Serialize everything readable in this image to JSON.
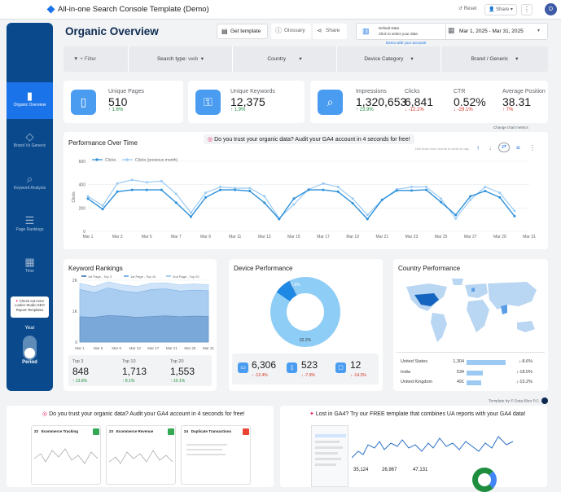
{
  "app": {
    "title": "All-in-one Search Console Template (Demo)",
    "reset_label": "Reset",
    "share_label": "Share",
    "more_icon": "more-vert-icon",
    "avatar_initial": "D"
  },
  "sidebar": {
    "items": [
      {
        "label": "Organic Overview",
        "icon": "bar-chart-icon"
      },
      {
        "label": "Brand Vs Generic",
        "icon": "tag-icon"
      },
      {
        "label": "Keyword Analysis",
        "icon": "search-list-icon"
      },
      {
        "label": "Page Rankings",
        "icon": "ranked-list-icon"
      },
      {
        "label": "Time",
        "icon": "calendar-icon"
      }
    ],
    "promo": "Check out more Looker Studio SEO Report Templates",
    "toggle_top": "Year",
    "toggle_bottom": "Period"
  },
  "header": {
    "title": "Organic Overview",
    "get_template": "Get template",
    "glossary": "Glossary",
    "share": "Share",
    "default_data": "Default Data",
    "default_data_hint": "Click to select your data",
    "demo_note": "Demo with your account!",
    "date_range": "Mar 1, 2025 - Mar 31, 2025"
  },
  "filters": {
    "add_filter": "+ Filter",
    "search_type_label": "Search type:",
    "search_type_value": "web",
    "country": "Country",
    "device": "Device Category",
    "brand": "Brand / Generic"
  },
  "kpis": {
    "unique_pages": {
      "label": "Unique Pages",
      "value": "510",
      "delta": "1.6%"
    },
    "unique_keywords": {
      "label": "Unique Keywords",
      "value": "12,375",
      "delta": "1.9%"
    },
    "impressions": {
      "label": "Impressions",
      "value": "1,320,653",
      "delta": "23.9%"
    },
    "clicks": {
      "label": "Clicks",
      "value": "6,841",
      "delta": "-12.1%"
    },
    "ctr": {
      "label": "CTR",
      "value": "0.52%",
      "delta": "-29.1%"
    },
    "position": {
      "label": "Average Position",
      "value": "38.31",
      "delta": "7%"
    }
  },
  "performance": {
    "title": "Performance Over Time",
    "banner": "Do you trust your organic data? Audit your GA4 account in 4 seconds for free!",
    "change_metrics": "Change chart metrics",
    "drill_hint": "Drill down from month to week to day",
    "legend": [
      "Clicks",
      "Clicks (previous month)"
    ],
    "ylabel": "Clicks"
  },
  "chart_data": [
    {
      "type": "line",
      "title": "Performance Over Time",
      "ylabel": "Clicks",
      "ylim": [
        0,
        600
      ],
      "yticks": [
        0,
        200,
        400,
        600
      ],
      "x": [
        "Mar 1",
        "Mar 2",
        "Mar 3",
        "Mar 4",
        "Mar 5",
        "Mar 6",
        "Mar 7",
        "Mar 8",
        "Mar 9",
        "Mar 10",
        "Mar 11",
        "Mar 12",
        "Mar 13",
        "Mar 14",
        "Mar 15",
        "Mar 16",
        "Mar 17",
        "Mar 18",
        "Mar 19",
        "Mar 20",
        "Mar 21",
        "Mar 22",
        "Mar 23",
        "Mar 24",
        "Mar 25",
        "Mar 26",
        "Mar 27",
        "Mar 28",
        "Mar 29",
        "Mar 30",
        "Mar 31"
      ],
      "x_tick_labels": [
        "Mar 1",
        "Mar 3",
        "Mar 5",
        "Mar 7",
        "Mar 9",
        "Mar 11",
        "Mar 13",
        "Mar 15",
        "Mar 17",
        "Mar 19",
        "Mar 21",
        "Mar 23",
        "Mar 25",
        "Mar 27",
        "Mar 29",
        "Mar 31"
      ],
      "series": [
        {
          "name": "Clicks",
          "values": [
            280,
            190,
            340,
            355,
            355,
            355,
            245,
            125,
            290,
            355,
            355,
            345,
            245,
            105,
            280,
            355,
            355,
            340,
            240,
            105,
            270,
            350,
            350,
            355,
            250,
            140,
            300,
            345,
            290,
            130,
            null
          ]
        },
        {
          "name": "Clicks (previous month)",
          "values": [
            300,
            220,
            410,
            440,
            420,
            430,
            320,
            160,
            330,
            380,
            370,
            370,
            300,
            110,
            230,
            360,
            410,
            380,
            280,
            140,
            270,
            360,
            380,
            380,
            280,
            110,
            270,
            380,
            330,
            175,
            null
          ]
        }
      ]
    },
    {
      "type": "area",
      "title": "Keyword Rankings",
      "ylim": [
        0,
        2000
      ],
      "yticks": [
        "0",
        "1K",
        "2K"
      ],
      "x_tick_labels": [
        "Mar 1",
        "Mar 5",
        "Mar 9",
        "Mar 13",
        "Mar 17",
        "Mar 21",
        "Mar 25",
        "Mar 31"
      ],
      "series": [
        {
          "name": "1st Page - Top 3",
          "values": [
            820,
            800,
            860,
            840,
            800,
            830,
            850,
            820,
            840,
            830
          ]
        },
        {
          "name": "1st Page - Top 10",
          "values": [
            1700,
            1600,
            1750,
            1650,
            1600,
            1700,
            1720,
            1650,
            1680,
            1660
          ]
        },
        {
          "name": "2nd Page - Top 20",
          "values": [
            1900,
            1800,
            1950,
            1850,
            1800,
            1900,
            1920,
            1850,
            1880,
            1860
          ]
        }
      ]
    },
    {
      "type": "pie",
      "title": "Device Performance",
      "slices": [
        {
          "name": "Desktop",
          "value": 92.2,
          "label": "92.2%"
        },
        {
          "name": "Mobile",
          "value": 7.6,
          "label": "7.6%"
        },
        {
          "name": "Tablet",
          "value": 0.2
        }
      ]
    },
    {
      "type": "bar",
      "title": "Country Performance",
      "categories": [
        "United States",
        "India",
        "United Kingdom"
      ],
      "values": [
        1304,
        534,
        491
      ],
      "deltas": [
        "-8.6%",
        "-18.0%",
        "-15.2%"
      ]
    }
  ],
  "keyword_rankings": {
    "title": "Keyword Rankings",
    "legend": [
      "1st Page - Top 3",
      "1st Page - Top 10",
      "2nd Page - Top 20"
    ],
    "stats": [
      {
        "label": "Top 3",
        "value": "848",
        "delta": "13.8%"
      },
      {
        "label": "Top 10",
        "value": "1,713",
        "delta": "8.1%"
      },
      {
        "label": "Top 20",
        "value": "1,553",
        "delta": "10.1%"
      }
    ]
  },
  "device_performance": {
    "title": "Device Performance",
    "big_label": "92.2%",
    "small_label": "7.6%",
    "stats": [
      {
        "icon": "desktop-icon",
        "value": "6,306",
        "delta": "-12.4%"
      },
      {
        "icon": "mobile-icon",
        "value": "523",
        "delta": "-7.9%"
      },
      {
        "icon": "tablet-icon",
        "value": "12",
        "delta": "-14.3%"
      }
    ]
  },
  "country_performance": {
    "title": "Country Performance",
    "rows": [
      {
        "country": "United States",
        "value": "1,304",
        "delta": "-8.6%"
      },
      {
        "country": "India",
        "value": "534",
        "delta": "-18.0%"
      },
      {
        "country": "United Kingdom",
        "value": "491",
        "delta": "-15.2%"
      }
    ]
  },
  "footer": {
    "credit": "Template by © Data Bloo P.C.",
    "left_banner": "Do you trust your organic data? Audit your GA4 account in 4 seconds for free!",
    "right_banner": "Lost in GA4? Try our FREE template that combines UA reports with your GA4 data!",
    "mini_cards": [
      {
        "num": "22",
        "title": "Ecommerce Tracking",
        "color": "#34a853"
      },
      {
        "num": "23",
        "title": "Ecommerce Revenue",
        "color": "#34a853"
      },
      {
        "num": "24",
        "title": "Duplicate Transactions",
        "color": "#ea4335"
      }
    ],
    "right_stats": [
      "35,124",
      "26,967",
      "47,131"
    ]
  },
  "colors": {
    "primary": "#1a73e8",
    "sidebar": "#0a4a8c",
    "line": "#2b8fd9",
    "line_prev": "#9ccaf3",
    "up": "#1e8e3e",
    "down": "#d93025"
  }
}
